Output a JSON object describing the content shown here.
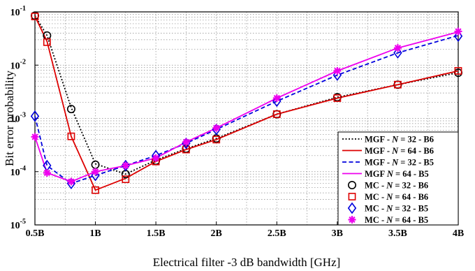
{
  "chart_data": {
    "type": "line",
    "title": "",
    "xlabel": "Electrical filter -3 dB bandwidth [GHz]",
    "ylabel": "Bit error probability",
    "xscale": "linear",
    "yscale": "log",
    "xlim": [
      0.5,
      4
    ],
    "ylim_exp": [
      -5,
      -1
    ],
    "x_ticks": [
      0.5,
      1,
      1.5,
      2,
      2.5,
      3,
      3.5,
      4
    ],
    "x_tick_labels": [
      "0.5B",
      "1B",
      "1.5B",
      "2B",
      "2.5B",
      "3B",
      "3.5B",
      "4B"
    ],
    "y_tick_exponents": [
      -5,
      -4,
      -3,
      -2,
      -1
    ],
    "y_tick_base": "10",
    "grid": true,
    "legend_position": "bottom-right",
    "series": [
      {
        "name_parts": [
          "MGF - ",
          "N",
          " = 32 - B6"
        ],
        "kind": "line",
        "color": "#000000",
        "dash": "dotted",
        "x": [
          0.5,
          0.6,
          0.8,
          1.0,
          1.25,
          1.5,
          1.75,
          2.0,
          2.5,
          3.0,
          3.5,
          4.0
        ],
        "y": [
          0.085,
          0.036,
          0.0016,
          0.00014,
          9e-05,
          0.000165,
          0.00027,
          0.00042,
          0.0012,
          0.0025,
          0.0043,
          0.0072
        ]
      },
      {
        "name_parts": [
          "MGF - ",
          "N",
          " = 64 - B6"
        ],
        "kind": "line",
        "color": "#dd0000",
        "dash": "solid",
        "x": [
          0.5,
          0.6,
          0.8,
          1.0,
          1.25,
          1.5,
          1.75,
          2.0,
          2.5,
          3.0,
          3.5,
          4.0
        ],
        "y": [
          0.083,
          0.028,
          0.00046,
          4.5e-05,
          7.5e-05,
          0.000155,
          0.00026,
          0.0004,
          0.0012,
          0.0024,
          0.0043,
          0.0078
        ]
      },
      {
        "name_parts": [
          "MGF - ",
          "N",
          " = 32 - B5"
        ],
        "kind": "line",
        "color": "#0000dd",
        "dash": "dashed",
        "x": [
          0.5,
          0.6,
          0.8,
          1.0,
          1.25,
          1.5,
          1.75,
          2.0,
          2.5,
          3.0,
          3.5,
          4.0
        ],
        "y": [
          0.0011,
          0.00013,
          6e-05,
          8.5e-05,
          0.00013,
          0.0002,
          0.00034,
          0.00062,
          0.0021,
          0.0065,
          0.017,
          0.036
        ]
      },
      {
        "name_parts": [
          "MGF ",
          "N",
          " = 64 - B5"
        ],
        "kind": "line",
        "color": "#ee00ee",
        "dash": "solid",
        "x": [
          0.5,
          0.6,
          0.8,
          1.0,
          1.25,
          1.5,
          1.75,
          2.0,
          2.5,
          3.0,
          3.5,
          4.0
        ],
        "y": [
          0.00045,
          9.5e-05,
          6.5e-05,
          0.0001,
          0.00013,
          0.00018,
          0.00036,
          0.00066,
          0.0024,
          0.0078,
          0.021,
          0.042
        ]
      },
      {
        "name_parts": [
          "MC - ",
          "N",
          " = 32 - B6"
        ],
        "kind": "marker",
        "marker": "circle",
        "color": "#000000",
        "x": [
          0.5,
          0.6,
          0.8,
          1.0,
          1.25,
          1.5,
          1.75,
          2.0,
          2.5,
          3.0,
          3.5,
          4.0
        ],
        "y": [
          0.085,
          0.036,
          0.0015,
          0.000135,
          9e-05,
          0.00016,
          0.00027,
          0.00042,
          0.0012,
          0.0025,
          0.0043,
          0.0072
        ]
      },
      {
        "name_parts": [
          "MC - ",
          "N",
          " = 64 - B6"
        ],
        "kind": "marker",
        "marker": "square",
        "color": "#dd0000",
        "x": [
          0.5,
          0.6,
          0.8,
          1.0,
          1.25,
          1.5,
          1.75,
          2.0,
          2.5,
          3.0,
          3.5,
          4.0
        ],
        "y": [
          0.082,
          0.027,
          0.00046,
          4.5e-05,
          7.2e-05,
          0.000155,
          0.00026,
          0.0004,
          0.0012,
          0.0024,
          0.0043,
          0.0078
        ]
      },
      {
        "name_parts": [
          "MC - ",
          "N",
          " = 32 - B5"
        ],
        "kind": "marker",
        "marker": "diamond",
        "color": "#0000dd",
        "x": [
          0.5,
          0.6,
          0.8,
          1.0,
          1.25,
          1.5,
          1.75,
          2.0,
          2.5,
          3.0,
          3.5,
          4.0
        ],
        "y": [
          0.0011,
          0.00013,
          6e-05,
          8.5e-05,
          0.00013,
          0.0002,
          0.00034,
          0.00062,
          0.0021,
          0.0065,
          0.017,
          0.035
        ]
      },
      {
        "name_parts": [
          "MC - ",
          "N",
          " = 64 - B5"
        ],
        "kind": "marker",
        "marker": "star",
        "color": "#ee00ee",
        "x": [
          0.5,
          0.6,
          0.8,
          1.0,
          1.25,
          1.5,
          1.75,
          2.0,
          2.5,
          3.0,
          3.5,
          4.0
        ],
        "y": [
          0.00045,
          9.5e-05,
          6.5e-05,
          0.0001,
          0.00013,
          0.00018,
          0.00036,
          0.00066,
          0.0024,
          0.0078,
          0.021,
          0.043
        ]
      }
    ]
  }
}
